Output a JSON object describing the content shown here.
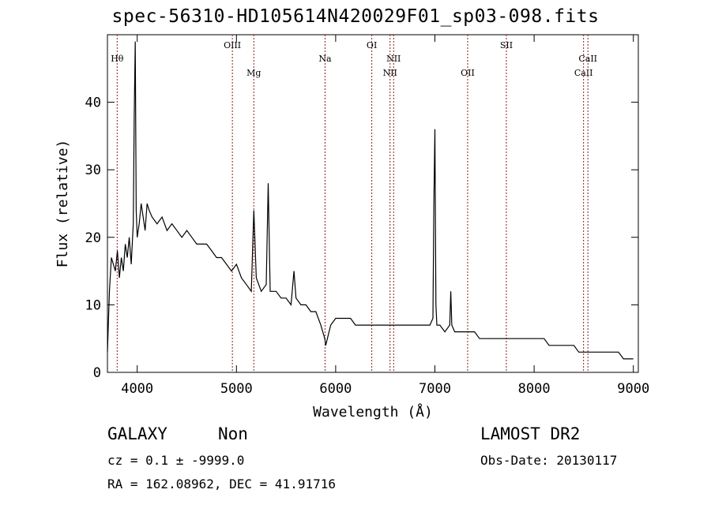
{
  "chart_data": {
    "type": "line",
    "title": "spec-56310-HD105614N420029F01_sp03-098.fits",
    "xlabel": "Wavelength (Å)",
    "ylabel": "Flux (relative)",
    "xlim": [
      3700,
      9050
    ],
    "ylim": [
      0,
      50
    ],
    "x_ticks": [
      4000,
      5000,
      6000,
      7000,
      8000,
      9000
    ],
    "y_ticks": [
      0,
      10,
      20,
      30,
      40
    ],
    "grid": false,
    "line_color": "#000000",
    "marker_color": "#8b1a1a",
    "series": [
      {
        "x": [
          3700,
          3720,
          3740,
          3760,
          3780,
          3800,
          3820,
          3840,
          3860,
          3880,
          3900,
          3920,
          3940,
          3960,
          3970,
          3980,
          3990,
          4000,
          4020,
          4040,
          4060,
          4080,
          4100,
          4120,
          4150,
          4200,
          4250,
          4300,
          4350,
          4400,
          4450,
          4500,
          4550,
          4600,
          4650,
          4700,
          4750,
          4800,
          4850,
          4900,
          4950,
          5000,
          5050,
          5100,
          5150,
          5175,
          5200,
          5250,
          5300,
          5320,
          5340,
          5400,
          5450,
          5500,
          5550,
          5580,
          5600,
          5650,
          5700,
          5750,
          5800,
          5850,
          5890,
          5900,
          5950,
          6000,
          6050,
          6100,
          6150,
          6200,
          6250,
          6300,
          6350,
          6400,
          6450,
          6500,
          6550,
          6600,
          6650,
          6700,
          6750,
          6800,
          6850,
          6900,
          6950,
          6980,
          6990,
          7000,
          7010,
          7020,
          7050,
          7100,
          7150,
          7160,
          7170,
          7200,
          7250,
          7300,
          7350,
          7400,
          7450,
          7500,
          7550,
          7600,
          7650,
          7700,
          7750,
          7800,
          7850,
          7900,
          7950,
          8000,
          8050,
          8100,
          8150,
          8200,
          8250,
          8300,
          8350,
          8400,
          8450,
          8500,
          8550,
          8600,
          8650,
          8700,
          8750,
          8800,
          8850,
          8900,
          8950,
          9000
        ],
        "y": [
          3,
          12,
          17,
          16,
          15,
          18,
          14,
          17,
          15,
          19,
          17,
          20,
          16,
          22,
          38,
          49,
          24,
          20,
          22,
          25,
          23,
          21,
          25,
          24,
          23,
          22,
          23,
          21,
          22,
          21,
          20,
          21,
          20,
          19,
          19,
          19,
          18,
          17,
          17,
          16,
          15,
          16,
          14,
          13,
          12,
          24,
          14,
          12,
          13,
          28,
          12,
          12,
          11,
          11,
          10,
          15,
          11,
          10,
          10,
          9,
          9,
          7,
          5,
          4,
          7,
          8,
          8,
          8,
          8,
          7,
          7,
          7,
          7,
          7,
          7,
          7,
          7,
          7,
          7,
          7,
          7,
          7,
          7,
          7,
          7,
          8,
          25,
          36,
          10,
          7,
          7,
          6,
          7,
          12,
          7,
          6,
          6,
          6,
          6,
          6,
          5,
          5,
          5,
          5,
          5,
          5,
          5,
          5,
          5,
          5,
          5,
          5,
          5,
          5,
          4,
          4,
          4,
          4,
          4,
          4,
          3,
          3,
          3,
          3,
          3,
          3,
          3,
          3,
          3,
          2,
          2,
          2
        ]
      }
    ],
    "lines": [
      {
        "label": "Hθ",
        "x": 3798,
        "color": "#8b1a1a",
        "row": 1
      },
      {
        "label": "OIII",
        "x": 4959,
        "color": "#8b1a1a",
        "row": 0
      },
      {
        "label": "Mg",
        "x": 5175,
        "color": "#8b1a1a",
        "row": 2
      },
      {
        "label": "Na",
        "x": 5893,
        "color": "#8b1a1a",
        "row": 1
      },
      {
        "label": "OI",
        "x": 6364,
        "color": "#8b1a1a",
        "row": 0
      },
      {
        "label": "NII",
        "x": 6548,
        "color": "#8b1a1a",
        "row": 2
      },
      {
        "label": "NII",
        "x": 6584,
        "color": "#8b1a1a",
        "row": 1
      },
      {
        "label": "OII",
        "x": 7330,
        "color": "#8b1a1a",
        "row": 2
      },
      {
        "label": "SII",
        "x": 7720,
        "color": "#8b1a1a",
        "row": 0
      },
      {
        "label": "CaII",
        "x": 8498,
        "color": "#8b1a1a",
        "row": 2
      },
      {
        "label": "CaII",
        "x": 8542,
        "color": "#8b1a1a",
        "row": 1
      }
    ]
  },
  "info": {
    "object_class": "GALAXY",
    "subclass": "Non",
    "redshift_text": "cz = 0.1 ± -9999.0",
    "coords_text": "RA = 162.08962, DEC =  41.91716",
    "survey": "LAMOST DR2",
    "obs_date": "Obs-Date: 20130117"
  }
}
